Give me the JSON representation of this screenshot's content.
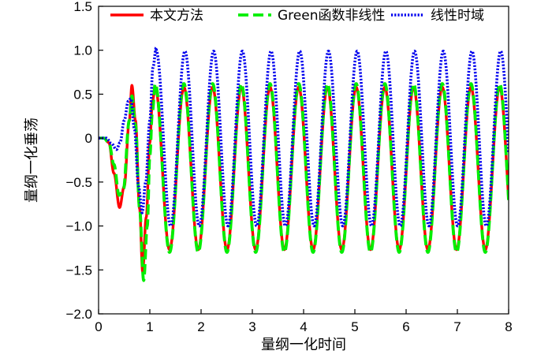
{
  "chart_data": {
    "type": "line",
    "xlabel": "量纲一化时间",
    "ylabel": "量纲一化垂荡",
    "xlim": [
      0,
      8
    ],
    "ylim": [
      -2.0,
      1.5
    ],
    "xticks": [
      "0",
      "1",
      "2",
      "3",
      "4",
      "5",
      "6",
      "7",
      "8"
    ],
    "yticks": [
      "−2.0",
      "−1.5",
      "−1.0",
      "−0.5",
      "0",
      "0.5",
      "1.0",
      "1.5"
    ],
    "legend_position": "top",
    "grid": false,
    "series": [
      {
        "name": "本文方法",
        "color": "#ff0000",
        "style": "solid",
        "period": 0.56,
        "first_peak_t": 1.105,
        "steady_max": 0.58,
        "steady_min": -1.27,
        "transient": [
          [
            0,
            0
          ],
          [
            0.1,
            0
          ],
          [
            0.2,
            -0.05
          ],
          [
            0.3,
            -0.4
          ],
          [
            0.41,
            -0.79
          ],
          [
            0.5,
            -0.55
          ],
          [
            0.6,
            0.2
          ],
          [
            0.65,
            0.6
          ],
          [
            0.72,
            0.2
          ],
          [
            0.8,
            -0.8
          ],
          [
            0.86,
            -1.52
          ],
          [
            0.93,
            -0.9
          ],
          [
            1.0,
            -0.05
          ],
          [
            1.05,
            0.42
          ],
          [
            1.105,
            0.58
          ]
        ]
      },
      {
        "name": "Green函数非线性",
        "color": "#00ee00",
        "style": "dashed",
        "period": 0.56,
        "first_peak_t": 1.105,
        "steady_max": 0.62,
        "steady_min": -1.3,
        "transient": [
          [
            0,
            0
          ],
          [
            0.1,
            0
          ],
          [
            0.2,
            -0.05
          ],
          [
            0.3,
            -0.3
          ],
          [
            0.4,
            -0.65
          ],
          [
            0.48,
            -0.6
          ],
          [
            0.6,
            0.2
          ],
          [
            0.65,
            0.48
          ],
          [
            0.72,
            0.15
          ],
          [
            0.8,
            -0.8
          ],
          [
            0.88,
            -1.62
          ],
          [
            0.95,
            -1.0
          ],
          [
            1.0,
            -0.2
          ],
          [
            1.05,
            0.3
          ],
          [
            1.105,
            0.62
          ]
        ]
      },
      {
        "name": "线性时域",
        "color": "#0000ee",
        "style": "dotted",
        "period": 0.56,
        "first_peak_t": 1.125,
        "steady_max": 0.99,
        "steady_min": -1.0,
        "transient": [
          [
            0,
            0
          ],
          [
            0.15,
            0
          ],
          [
            0.25,
            -0.06
          ],
          [
            0.35,
            -0.13
          ],
          [
            0.42,
            -0.05
          ],
          [
            0.5,
            0.2
          ],
          [
            0.58,
            0.42
          ],
          [
            0.63,
            0.45
          ],
          [
            0.7,
            0.1
          ],
          [
            0.78,
            -0.55
          ],
          [
            0.85,
            -0.85
          ],
          [
            0.92,
            -0.5
          ],
          [
            1.0,
            0.2
          ],
          [
            1.06,
            0.8
          ],
          [
            1.125,
            1.03
          ]
        ]
      }
    ]
  }
}
